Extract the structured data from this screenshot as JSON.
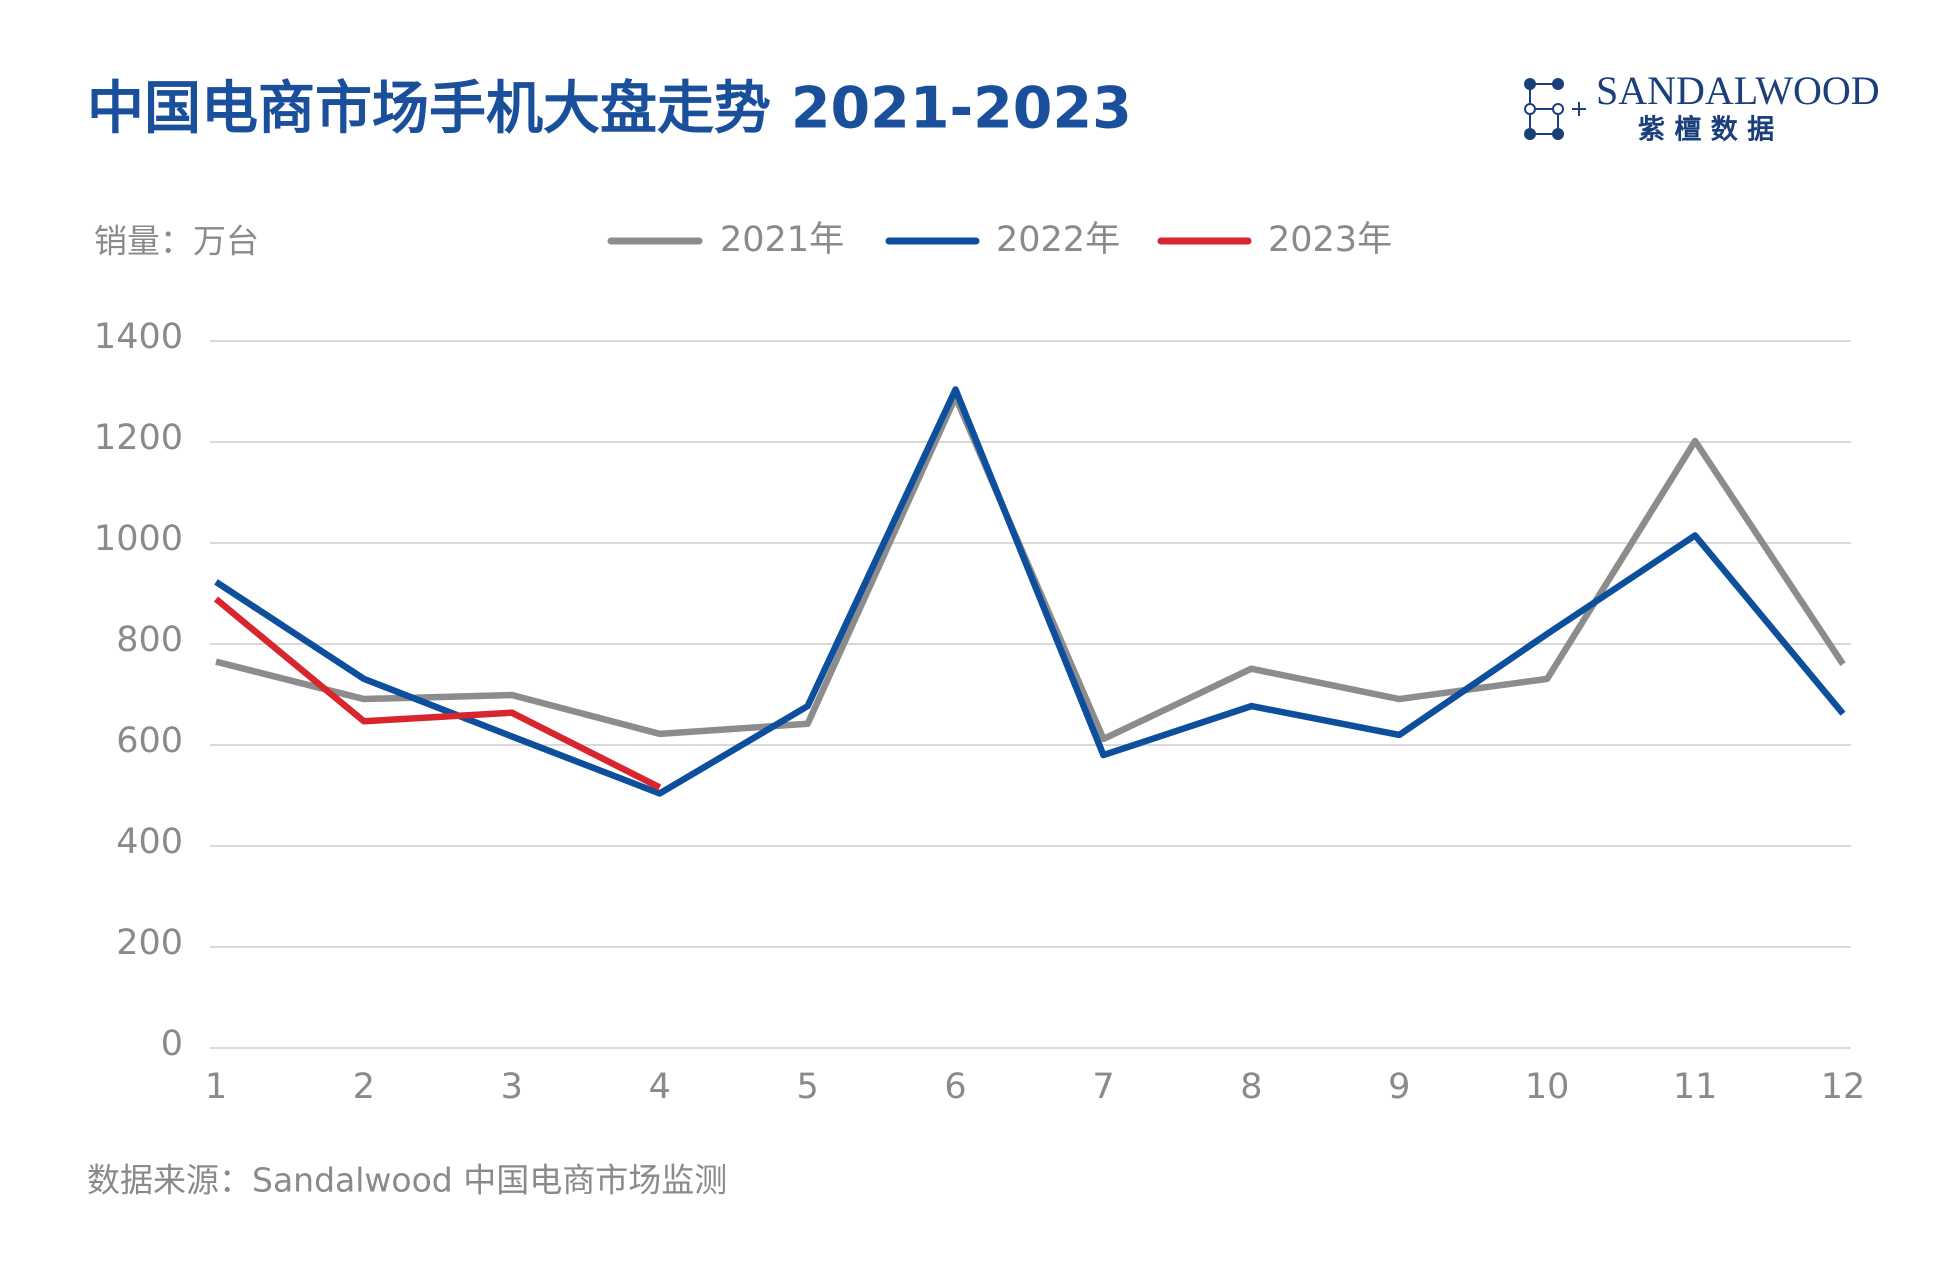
{
  "chart_data": {
    "type": "line",
    "title": "中国电商市场手机大盘走势 2021-2023",
    "y_axis_label": "销量：万台",
    "source": "数据来源：Sandalwood 中国电商市场监测",
    "logo": {
      "name": "SANDALWOOD",
      "subtitle": "紫 檀 数 据"
    },
    "categories": [
      "1",
      "2",
      "3",
      "4",
      "5",
      "6",
      "7",
      "8",
      "9",
      "10",
      "11",
      "12"
    ],
    "series": [
      {
        "name": "2021年",
        "color": "#8c8c8c",
        "values": [
          765,
          691,
          699,
          622,
          642,
          1289,
          612,
          751,
          691,
          731,
          1202,
          760
        ]
      },
      {
        "name": "2022年",
        "color": "#0d4f9c",
        "values": [
          923,
          731,
          617,
          504,
          677,
          1304,
          580,
          677,
          620,
          820,
          1015,
          662
        ]
      },
      {
        "name": "2023年",
        "color": "#d8262e",
        "values": [
          889,
          647,
          664,
          516,
          null,
          null,
          null,
          null,
          null,
          null,
          null,
          null
        ]
      }
    ],
    "ylim": [
      0,
      1400
    ],
    "yticks": [
      0,
      200,
      400,
      600,
      800,
      1000,
      1200,
      1400
    ],
    "grid": true,
    "legend": "top"
  }
}
